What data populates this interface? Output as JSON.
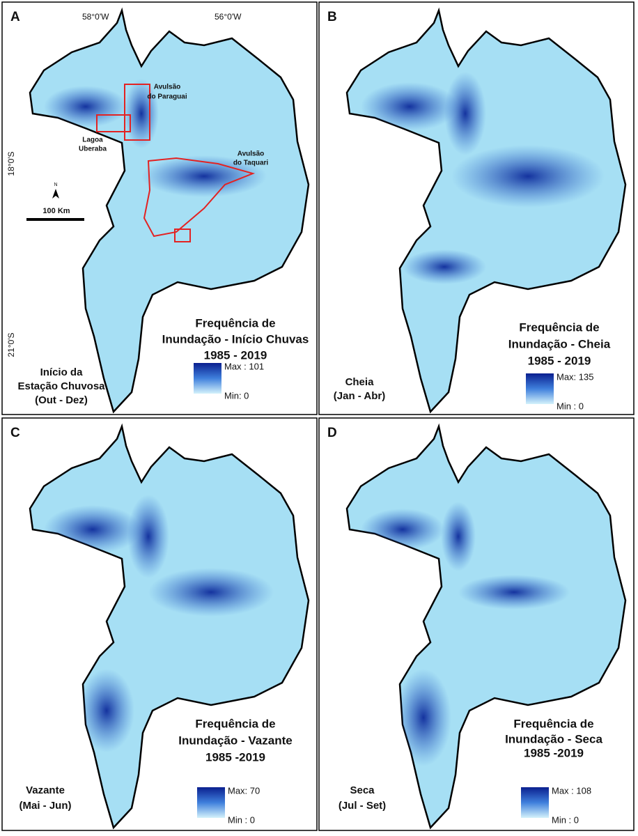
{
  "coordinates": {
    "top": [
      "58°0'W",
      "56°0'W"
    ],
    "left": [
      "18°0'S",
      "21°0'S"
    ]
  },
  "scale_bar": "100 Km",
  "north": "N",
  "annotations": [
    [
      "Avulsão",
      "do Paraguai"
    ],
    [
      "Lagoa",
      "Uberaba"
    ],
    [
      "Avulsão",
      "do Taquari"
    ]
  ],
  "panels": [
    {
      "letter": "A",
      "title": [
        "Frequência de",
        "Inundação - Início Chuvas",
        "1985 - 2019"
      ],
      "season": [
        "Início da",
        "Estação Chuvosa",
        "(Out - Dez)"
      ],
      "legend_max": "Max : 101",
      "legend_min": "Min: 0"
    },
    {
      "letter": "B",
      "title": [
        "Frequência de",
        "Inundação - Cheia",
        "1985 - 2019"
      ],
      "season": [
        "Cheia",
        "(Jan - Abr)"
      ],
      "legend_max": "Max: 135",
      "legend_min": "Min : 0"
    },
    {
      "letter": "C",
      "title": [
        "Frequência de",
        "Inundação - Vazante",
        "1985 -2019"
      ],
      "season": [
        "Vazante",
        "(Mai - Jun)"
      ],
      "legend_max": "Max: 70",
      "legend_min": "Min : 0"
    },
    {
      "letter": "D",
      "title": [
        "Frequência de",
        "Inundação - Seca",
        "1985 -2019"
      ],
      "season": [
        "Seca",
        "(Jul - Set)"
      ],
      "legend_max": "Max : 108",
      "legend_min": "Min : 0"
    }
  ]
}
